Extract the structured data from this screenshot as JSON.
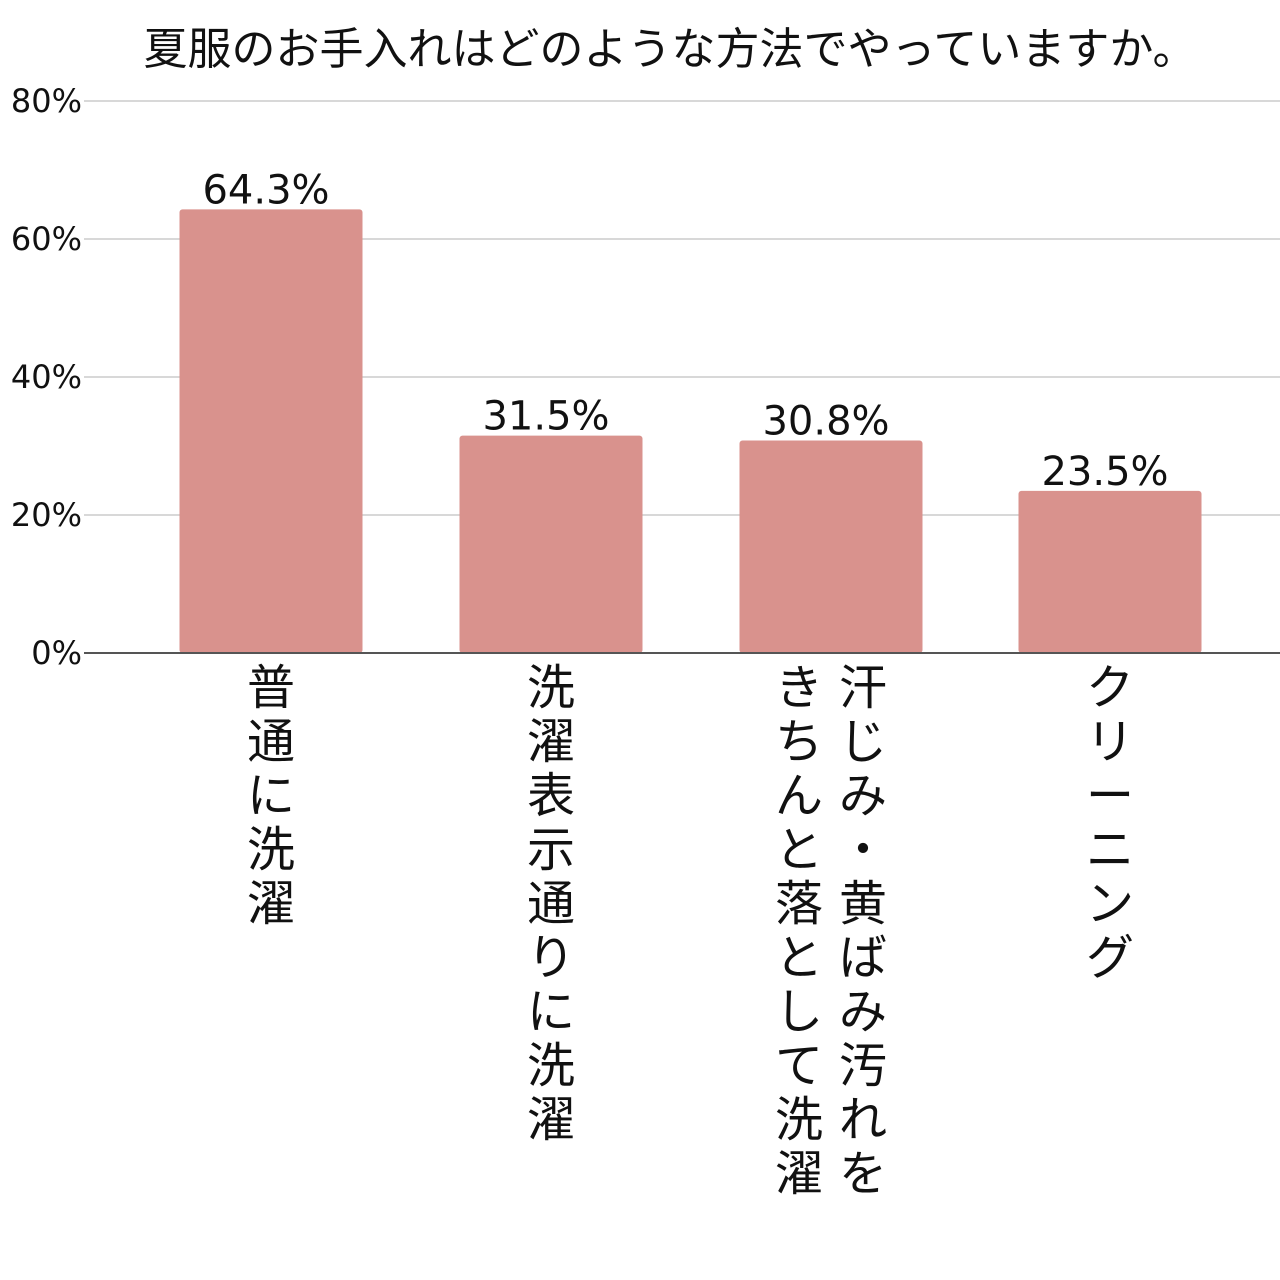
{
  "chart_data": {
    "type": "bar",
    "title": "夏服のお手入れはどのような方法でやっていますか。",
    "xlabel": "",
    "ylabel": "",
    "categories": [
      "普通に洗濯",
      "洗濯表示通りに洗濯",
      "汗じみ・黄ばみ汚れをきちんと落として洗濯",
      "クリーニング"
    ],
    "category_label_lines": [
      [
        "普通に洗濯"
      ],
      [
        "洗濯表示通りに洗濯"
      ],
      [
        "汗じみ・黄ばみ汚れを",
        "きちんと落として洗濯"
      ],
      [
        "クリーニング"
      ]
    ],
    "values": [
      64.3,
      31.5,
      30.8,
      23.5
    ],
    "data_labels": [
      "64.3%",
      "31.5%",
      "30.8%",
      "23.5%"
    ],
    "ylim": [
      0,
      80
    ],
    "y_ticks": [
      0,
      20,
      40,
      60,
      80
    ],
    "y_tick_labels": [
      "0%",
      "20%",
      "40%",
      "60%",
      "80%"
    ],
    "grid": true,
    "legend": "none",
    "colors": {
      "bar": "#d9928d",
      "grid": "#d8d8d8",
      "axis": "#555555",
      "text": "#111111"
    }
  }
}
